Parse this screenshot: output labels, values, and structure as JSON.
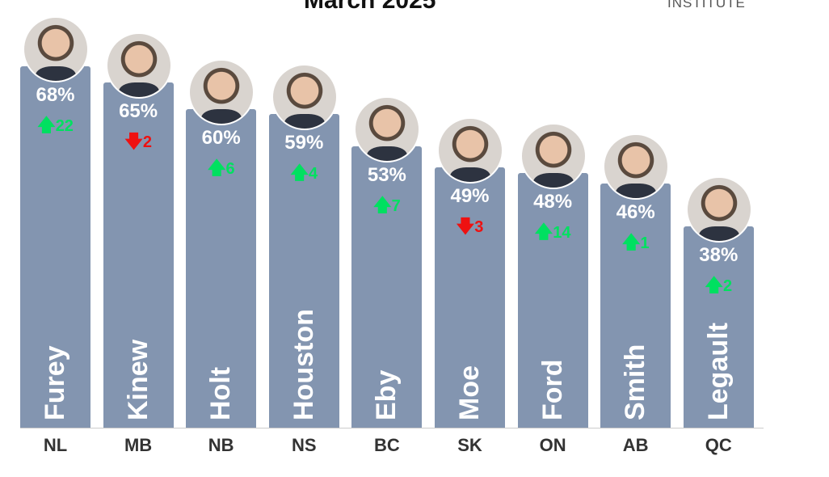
{
  "chart_data": {
    "type": "bar",
    "title": "March 2025",
    "logo_text": "INSTITUTE",
    "categories": [
      "NL",
      "MB",
      "NB",
      "NS",
      "BC",
      "SK",
      "ON",
      "AB",
      "QC"
    ],
    "names": [
      "Furey",
      "Kinew",
      "Holt",
      "Houston",
      "Eby",
      "Moe",
      "Ford",
      "Smith",
      "Legault"
    ],
    "values": [
      68,
      65,
      60,
      59,
      53,
      49,
      48,
      46,
      38
    ],
    "value_labels": [
      "68%",
      "65%",
      "60%",
      "59%",
      "53%",
      "49%",
      "48%",
      "46%",
      "38%"
    ],
    "changes": [
      22,
      -2,
      6,
      4,
      7,
      -3,
      14,
      1,
      2
    ],
    "ylim": [
      0,
      80
    ],
    "colors": {
      "bar": "#8395b0",
      "up": "#00e060",
      "down": "#ee1111"
    }
  }
}
